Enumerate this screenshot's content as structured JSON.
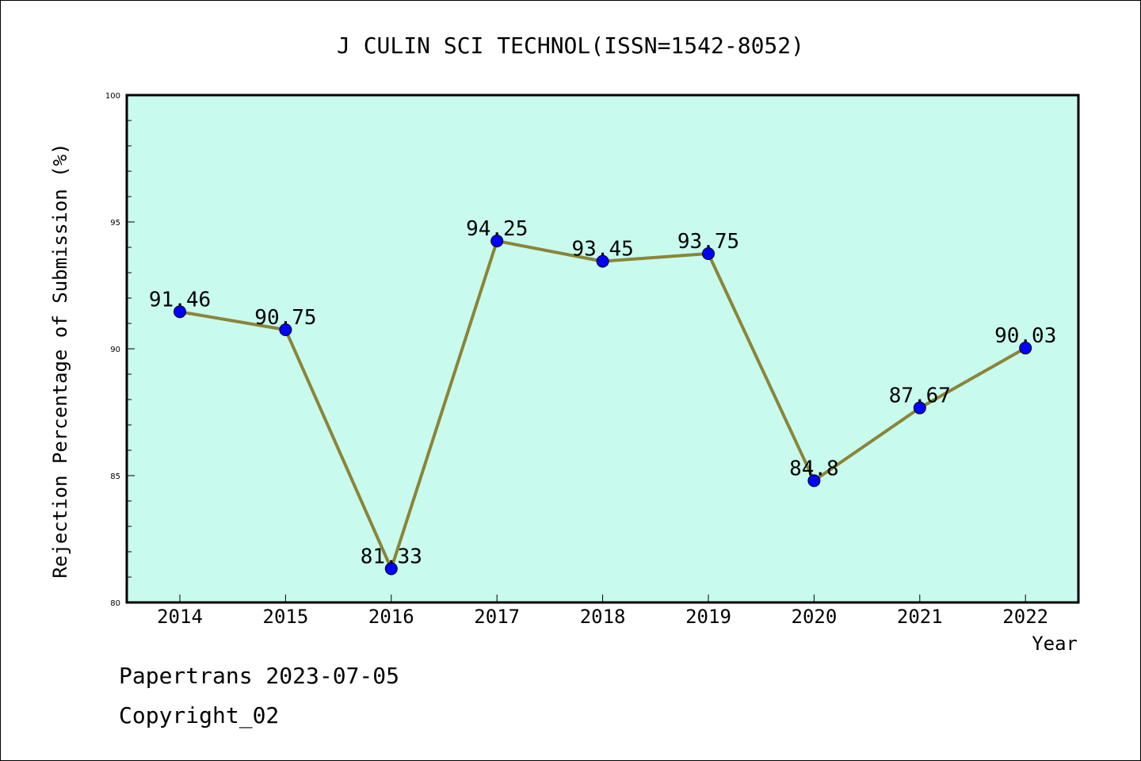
{
  "chart_data": {
    "type": "line",
    "title": "J CULIN SCI TECHNOL(ISSN=1542-8052)",
    "xlabel": "Year",
    "ylabel": "Rejection Percentage of Submission (%)",
    "categories": [
      "2014",
      "2015",
      "2016",
      "2017",
      "2018",
      "2019",
      "2020",
      "2021",
      "2022"
    ],
    "series": [
      {
        "values": [
          91.46,
          90.75,
          81.33,
          94.25,
          93.45,
          93.75,
          84.8,
          87.67,
          90.03
        ],
        "labels": [
          "91.46",
          "90.75",
          "81.33",
          "94.25",
          "93.45",
          "93.75",
          "84.8",
          "87.67",
          "90.03"
        ]
      }
    ],
    "ylim": [
      80,
      100
    ],
    "yticks": [
      "80",
      "85",
      "90",
      "95",
      "100"
    ],
    "grid": false,
    "colors": {
      "plot_background": "#c8fbee",
      "line": "#8b8438",
      "marker": "#0000ff"
    }
  },
  "footer": {
    "source": "Papertrans 2023-07-05",
    "copyright": "Copyright_02"
  }
}
